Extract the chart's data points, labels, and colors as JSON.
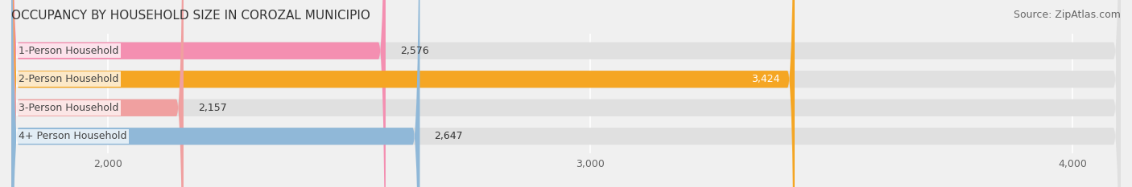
{
  "title": "OCCUPANCY BY HOUSEHOLD SIZE IN COROZAL MUNICIPIO",
  "source": "Source: ZipAtlas.com",
  "categories": [
    "1-Person Household",
    "2-Person Household",
    "3-Person Household",
    "4+ Person Household"
  ],
  "values": [
    2576,
    3424,
    2157,
    2647
  ],
  "bar_colors": [
    "#f48fb1",
    "#f5a623",
    "#f0a0a0",
    "#90b8d8"
  ],
  "label_colors": [
    "#333333",
    "#ffffff",
    "#333333",
    "#333333"
  ],
  "xlim": [
    1800,
    4100
  ],
  "xticks": [
    2000,
    3000,
    4000
  ],
  "xticklabels": [
    "2,000",
    "3,000",
    "4,000"
  ],
  "background_color": "#f0f0f0",
  "bar_background_color": "#e0e0e0",
  "title_fontsize": 11,
  "source_fontsize": 9,
  "label_fontsize": 9,
  "tick_fontsize": 9
}
